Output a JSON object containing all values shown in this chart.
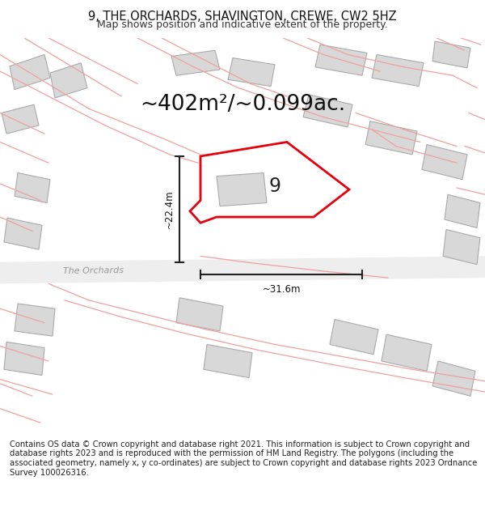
{
  "title": "9, THE ORCHARDS, SHAVINGTON, CREWE, CW2 5HZ",
  "subtitle": "Map shows position and indicative extent of the property.",
  "area_label": "~402m²/~0.099ac.",
  "width_label": "~31.6m",
  "height_label": "~22.4m",
  "plot_number": "9",
  "footer": "Contains OS data © Crown copyright and database right 2021. This information is subject to Crown copyright and database rights 2023 and is reproduced with the permission of HM Land Registry. The polygons (including the associated geometry, namely x, y co-ordinates) are subject to Crown copyright and database rights 2023 Ordnance Survey 100026316.",
  "bg_color": "#ffffff",
  "map_bg": "#ffffff",
  "building_color": "#d8d8d8",
  "building_edge": "#aaaaaa",
  "red_outline_color": "#e8000a",
  "pink_road_color": "#f0a0a0",
  "dim_line_color": "#222222",
  "road_fill_color": "#eeeeee",
  "title_fontsize": 10.5,
  "subtitle_fontsize": 9,
  "area_fontsize": 19,
  "label_fontsize": 8.5,
  "number_fontsize": 17,
  "footer_fontsize": 7.2
}
